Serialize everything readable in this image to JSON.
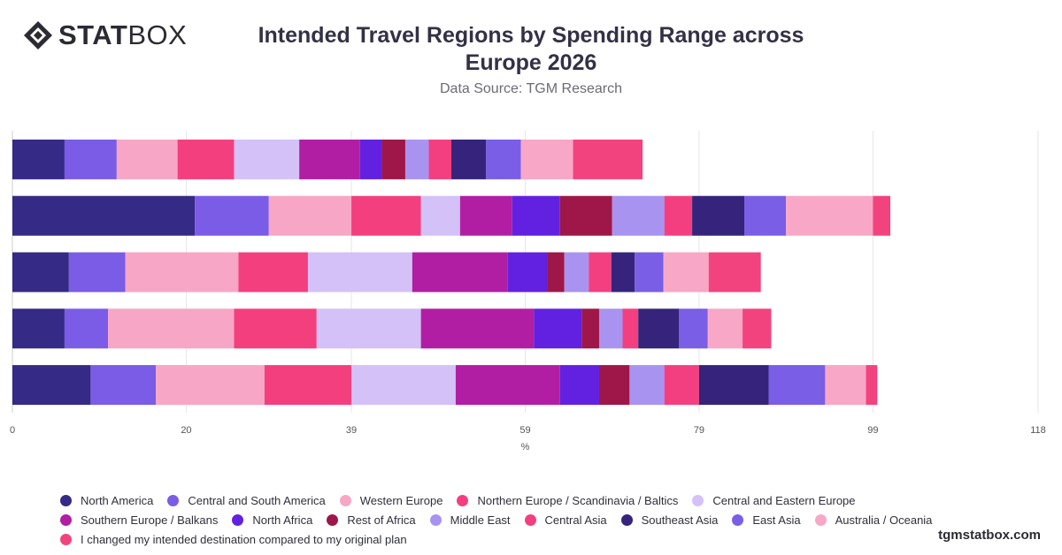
{
  "header": {
    "logo_text_bold": "STAT",
    "logo_text_light": "BOX",
    "logo_icon": "diamond-logo-icon"
  },
  "footer": {
    "brand": "tgmstatbox.com"
  },
  "chart_data": {
    "type": "bar",
    "orientation": "horizontal",
    "stacked": true,
    "title": "Intended Travel Regions by Spending Range across Europe 2026",
    "subtitle": "Data Source: TGM Research",
    "xlabel": "%",
    "ylabel": "",
    "xlim": [
      0,
      118
    ],
    "x_ticks": [
      "0",
      "20",
      "39",
      "59",
      "79",
      "99",
      "118"
    ],
    "grid": true,
    "legend_position": "bottom",
    "categories": [
      "",
      "",
      "",
      "",
      ""
    ],
    "series": [
      {
        "name": "North America",
        "color": "#352a86",
        "values": [
          6,
          21,
          6.5,
          6,
          9
        ]
      },
      {
        "name": "Central and South America",
        "color": "#7b5ce6",
        "values": [
          6,
          8.5,
          6.5,
          5,
          7.5
        ]
      },
      {
        "name": "Western Europe",
        "color": "#f7a6c6",
        "values": [
          7,
          9.5,
          13,
          14.5,
          12.5
        ]
      },
      {
        "name": "Northern Europe / Scandinavia / Baltics",
        "color": "#f43f7f",
        "values": [
          6.5,
          8,
          8,
          9.5,
          10
        ]
      },
      {
        "name": "Central and Eastern Europe",
        "color": "#d3c1f7",
        "values": [
          7.5,
          4.5,
          12,
          12,
          12
        ]
      },
      {
        "name": "Southern Europe / Balkans",
        "color": "#b21ea3",
        "values": [
          7,
          6,
          11,
          13,
          12
        ]
      },
      {
        "name": "North Africa",
        "color": "#6221e0",
        "values": [
          2.5,
          5.5,
          4.5,
          5.5,
          4.5
        ]
      },
      {
        "name": "Rest of Africa",
        "color": "#9e1748",
        "values": [
          2.7,
          6,
          2,
          2,
          3.5
        ]
      },
      {
        "name": "Middle East",
        "color": "#a993f0",
        "values": [
          2.7,
          6,
          2.8,
          2.7,
          4
        ]
      },
      {
        "name": "Central Asia",
        "color": "#f33f80",
        "values": [
          2.6,
          3.2,
          2.6,
          1.8,
          4
        ]
      },
      {
        "name": "Southeast Asia",
        "color": "#36237b",
        "values": [
          4,
          6,
          2.7,
          4.7,
          8
        ]
      },
      {
        "name": "East Asia",
        "color": "#7a5ee6",
        "values": [
          4,
          4.8,
          3.3,
          3.3,
          6.5
        ]
      },
      {
        "name": "Australia / Oceania",
        "color": "#f8a7c6",
        "values": [
          6,
          10,
          5.2,
          4,
          4.7
        ]
      },
      {
        "name": "I changed my intended destination compared to my original plan",
        "color": "#f3437f",
        "values": [
          8,
          2,
          6,
          3.3,
          1.3
        ]
      }
    ]
  }
}
